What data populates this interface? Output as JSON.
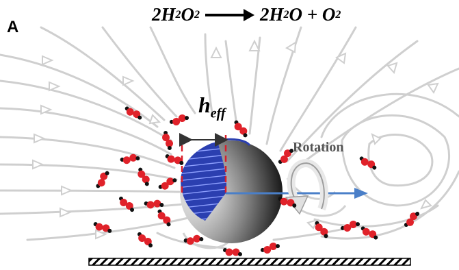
{
  "panel_label": "A",
  "equation": {
    "lhs_coef": "2",
    "lhs_a": "H",
    "lhs_sub1": "2",
    "lhs_b": "O",
    "lhs_sub2": "2",
    "rhs1_coef": "2",
    "rhs1_a": "H",
    "rhs1_sub": "2",
    "rhs1_b": "O",
    "plus": " + ",
    "rhs2_a": "O",
    "rhs2_sub": "2"
  },
  "heff": {
    "main": "h",
    "sub": "eff"
  },
  "rotation_label": "Rotation",
  "colors": {
    "streamline": "#cfcfcf",
    "oxygen": "#e0222a",
    "hydrogen": "#111111",
    "catalyst_cap": "#2b3fb0",
    "dashed_marker": "#d81e2a",
    "velocity_arrow": "#4a7fc8",
    "substrate_hatch": "#000000"
  }
}
